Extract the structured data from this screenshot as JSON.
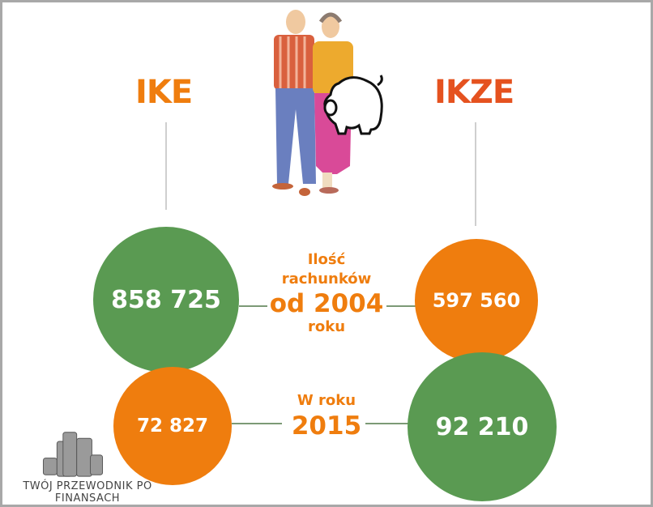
{
  "colors": {
    "green": "#5a9a52",
    "orange": "#ef7d0e",
    "ikze": "#e5521f"
  },
  "headers": {
    "left": "IKE",
    "right": "IKZE"
  },
  "section1": {
    "label_line1": "Ilość",
    "label_line2": "rachunków",
    "label_line3": "od 2004",
    "label_line4": "roku",
    "ike_value": "858 725",
    "ikze_value": "597 560"
  },
  "section2": {
    "label_line1": "W roku",
    "label_line2": "2015",
    "ike_value": "72 827",
    "ikze_value": "92 210"
  },
  "watermark": {
    "line1": "TWÓJ PRZEWODNIK PO",
    "line2": "FINANSACH",
    "icon": "coin-stacks-icon"
  },
  "illustration": {
    "icon": "couple-with-piggy-bank-illustration"
  }
}
